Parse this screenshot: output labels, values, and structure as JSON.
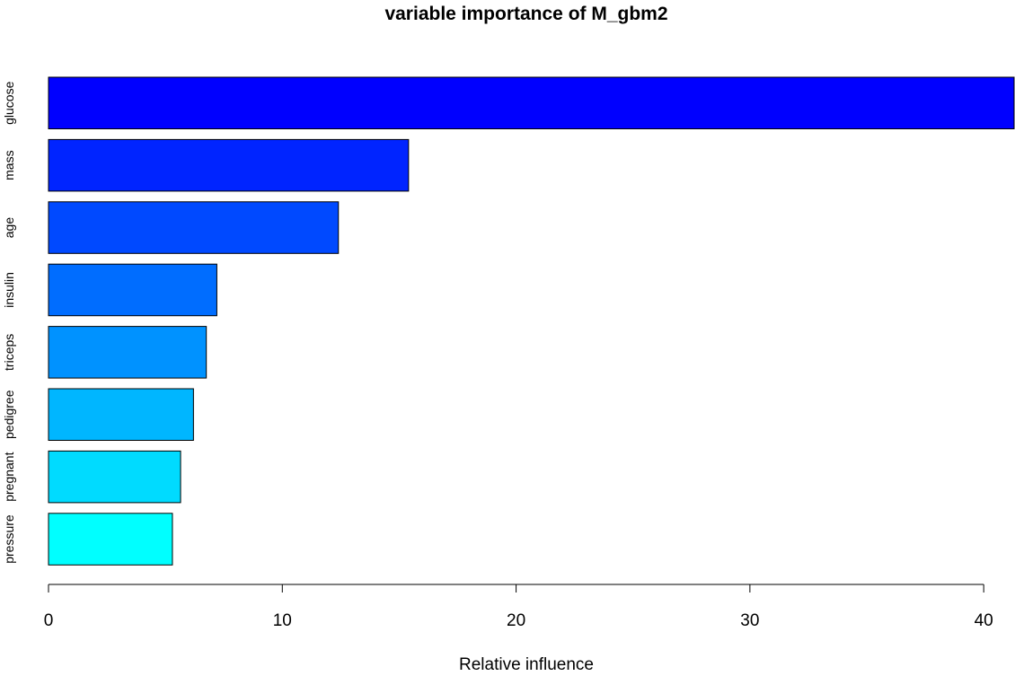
{
  "chart_data": {
    "type": "bar",
    "orientation": "horizontal",
    "title": "variable importance of M_gbm2",
    "xlabel": "Relative influence",
    "ylabel": "",
    "categories": [
      "glucose",
      "mass",
      "age",
      "insulin",
      "triceps",
      "pedigree",
      "pregnant",
      "pressure"
    ],
    "values": [
      41.3,
      15.4,
      12.4,
      7.2,
      6.75,
      6.2,
      5.65,
      5.3
    ],
    "colors": [
      "#0000FF",
      "#0024FF",
      "#0049FF",
      "#006DFF",
      "#0092FF",
      "#00B6FF",
      "#00DBFF",
      "#00FFFF"
    ],
    "xlim": [
      0,
      41.3
    ],
    "xticks": [
      0,
      10,
      20,
      30,
      40
    ],
    "grid": false,
    "legend": "none"
  }
}
